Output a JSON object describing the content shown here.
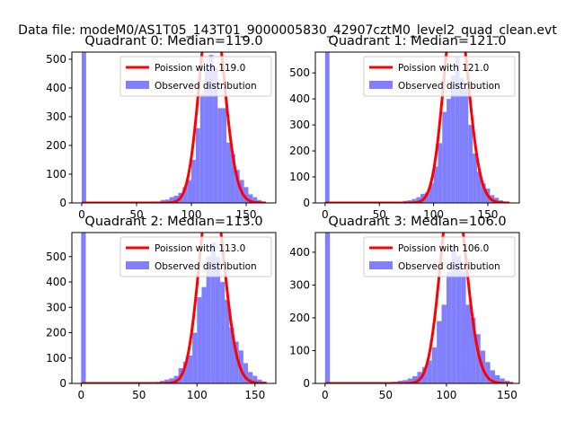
{
  "figure": {
    "suptitle": "Data file: modeM0/AS1T05_143T01_9000005830_42907cztM0_level2_quad_clean.evt"
  },
  "colors": {
    "poisson_line": "#ff0000",
    "histogram": "#8080ff",
    "axis": "#000000",
    "background": "#ffffff"
  },
  "chart_data": [
    {
      "type": "histogram+line",
      "title": "Quadrant 0: Median=119.0",
      "median": 119.0,
      "xlim": [
        -9,
        177
      ],
      "ylim": [
        0,
        525
      ],
      "xticks": [
        0,
        50,
        100,
        150
      ],
      "yticks": [
        0,
        100,
        200,
        300,
        400,
        500
      ],
      "legend_location": "top-right",
      "series": [
        {
          "name": "Poission with 119.0",
          "kind": "line",
          "lambda": 119.0,
          "scale": 19980,
          "x_range": [
            0,
            168
          ]
        },
        {
          "name": "Observed distribution",
          "kind": "histogram",
          "bin_width": 4,
          "bins": [
            {
              "x": 0,
              "count": 525
            },
            {
              "x": 64,
              "count": 5
            },
            {
              "x": 68,
              "count": 5
            },
            {
              "x": 72,
              "count": 10
            },
            {
              "x": 76,
              "count": 12
            },
            {
              "x": 80,
              "count": 20
            },
            {
              "x": 84,
              "count": 25
            },
            {
              "x": 88,
              "count": 35
            },
            {
              "x": 92,
              "count": 55
            },
            {
              "x": 96,
              "count": 80
            },
            {
              "x": 100,
              "count": 150
            },
            {
              "x": 104,
              "count": 260
            },
            {
              "x": 108,
              "count": 380
            },
            {
              "x": 112,
              "count": 470
            },
            {
              "x": 116,
              "count": 515
            },
            {
              "x": 120,
              "count": 470
            },
            {
              "x": 124,
              "count": 330
            },
            {
              "x": 128,
              "count": 330
            },
            {
              "x": 132,
              "count": 210
            },
            {
              "x": 136,
              "count": 170
            },
            {
              "x": 140,
              "count": 115
            },
            {
              "x": 144,
              "count": 80
            },
            {
              "x": 148,
              "count": 55
            },
            {
              "x": 152,
              "count": 30
            },
            {
              "x": 156,
              "count": 20
            },
            {
              "x": 160,
              "count": 10
            }
          ]
        }
      ]
    },
    {
      "type": "histogram+line",
      "title": "Quadrant 1: Median=121.0",
      "median": 121.0,
      "xlim": [
        -9,
        179
      ],
      "ylim": [
        0,
        580
      ],
      "xticks": [
        0,
        50,
        100,
        150
      ],
      "yticks": [
        0,
        100,
        200,
        300,
        400,
        500
      ],
      "legend_location": "top-right",
      "series": [
        {
          "name": "Poission with 121.0",
          "kind": "line",
          "lambda": 121.0,
          "scale": 21900,
          "x_range": [
            0,
            170
          ]
        },
        {
          "name": "Observed distribution",
          "kind": "histogram",
          "bin_width": 4,
          "bins": [
            {
              "x": 0,
              "count": 580
            },
            {
              "x": 68,
              "count": 5
            },
            {
              "x": 72,
              "count": 8
            },
            {
              "x": 76,
              "count": 10
            },
            {
              "x": 80,
              "count": 15
            },
            {
              "x": 84,
              "count": 22
            },
            {
              "x": 88,
              "count": 35
            },
            {
              "x": 92,
              "count": 40
            },
            {
              "x": 96,
              "count": 75
            },
            {
              "x": 100,
              "count": 140
            },
            {
              "x": 104,
              "count": 230
            },
            {
              "x": 108,
              "count": 350
            },
            {
              "x": 112,
              "count": 400
            },
            {
              "x": 116,
              "count": 490
            },
            {
              "x": 120,
              "count": 560
            },
            {
              "x": 124,
              "count": 480
            },
            {
              "x": 128,
              "count": 440
            },
            {
              "x": 132,
              "count": 300
            },
            {
              "x": 136,
              "count": 190
            },
            {
              "x": 140,
              "count": 120
            },
            {
              "x": 144,
              "count": 75
            },
            {
              "x": 148,
              "count": 55
            },
            {
              "x": 152,
              "count": 30
            },
            {
              "x": 156,
              "count": 20
            },
            {
              "x": 160,
              "count": 10
            }
          ]
        }
      ]
    },
    {
      "type": "histogram+line",
      "title": "Quadrant 2: Median=113.0",
      "median": 113.0,
      "xlim": [
        -8,
        168
      ],
      "ylim": [
        0,
        595
      ],
      "xticks": [
        0,
        50,
        100,
        150
      ],
      "yticks": [
        0,
        100,
        200,
        300,
        400,
        500
      ],
      "legend_location": "top-right",
      "series": [
        {
          "name": "Poission with 113.0",
          "kind": "line",
          "lambda": 113.0,
          "scale": 21200,
          "x_range": [
            0,
            160
          ]
        },
        {
          "name": "Observed distribution",
          "kind": "histogram",
          "bin_width": 4,
          "bins": [
            {
              "x": 0,
              "count": 595
            },
            {
              "x": 60,
              "count": 5
            },
            {
              "x": 64,
              "count": 6
            },
            {
              "x": 68,
              "count": 10
            },
            {
              "x": 72,
              "count": 15
            },
            {
              "x": 76,
              "count": 20
            },
            {
              "x": 80,
              "count": 30
            },
            {
              "x": 84,
              "count": 60
            },
            {
              "x": 88,
              "count": 85
            },
            {
              "x": 92,
              "count": 110
            },
            {
              "x": 96,
              "count": 200
            },
            {
              "x": 100,
              "count": 340
            },
            {
              "x": 104,
              "count": 380
            },
            {
              "x": 108,
              "count": 500
            },
            {
              "x": 112,
              "count": 555
            },
            {
              "x": 116,
              "count": 500
            },
            {
              "x": 120,
              "count": 400
            },
            {
              "x": 124,
              "count": 330
            },
            {
              "x": 128,
              "count": 220
            },
            {
              "x": 132,
              "count": 165
            },
            {
              "x": 136,
              "count": 130
            },
            {
              "x": 140,
              "count": 80
            },
            {
              "x": 144,
              "count": 45
            },
            {
              "x": 148,
              "count": 30
            },
            {
              "x": 152,
              "count": 15
            },
            {
              "x": 156,
              "count": 8
            }
          ]
        }
      ]
    },
    {
      "type": "histogram+line",
      "title": "Quadrant 3: Median=106.0",
      "median": 106.0,
      "xlim": [
        -8,
        160
      ],
      "ylim": [
        0,
        460
      ],
      "xticks": [
        0,
        50,
        100,
        150
      ],
      "yticks": [
        0,
        100,
        200,
        300,
        400
      ],
      "legend_location": "top-right",
      "series": [
        {
          "name": "Poission with 106.0",
          "kind": "line",
          "lambda": 106.0,
          "scale": 16250,
          "x_range": [
            0,
            155
          ]
        },
        {
          "name": "Observed distribution",
          "kind": "histogram",
          "bin_width": 4,
          "bins": [
            {
              "x": 0,
              "count": 460
            },
            {
              "x": 56,
              "count": 5
            },
            {
              "x": 60,
              "count": 8
            },
            {
              "x": 64,
              "count": 10
            },
            {
              "x": 68,
              "count": 15
            },
            {
              "x": 72,
              "count": 22
            },
            {
              "x": 76,
              "count": 35
            },
            {
              "x": 80,
              "count": 50
            },
            {
              "x": 84,
              "count": 70
            },
            {
              "x": 88,
              "count": 110
            },
            {
              "x": 92,
              "count": 190
            },
            {
              "x": 96,
              "count": 240
            },
            {
              "x": 100,
              "count": 340
            },
            {
              "x": 104,
              "count": 420
            },
            {
              "x": 108,
              "count": 390
            },
            {
              "x": 112,
              "count": 340
            },
            {
              "x": 116,
              "count": 240
            },
            {
              "x": 120,
              "count": 200
            },
            {
              "x": 124,
              "count": 150
            },
            {
              "x": 128,
              "count": 100
            },
            {
              "x": 132,
              "count": 65
            },
            {
              "x": 136,
              "count": 40
            },
            {
              "x": 140,
              "count": 25
            },
            {
              "x": 144,
              "count": 15
            },
            {
              "x": 148,
              "count": 8
            }
          ]
        }
      ]
    }
  ]
}
